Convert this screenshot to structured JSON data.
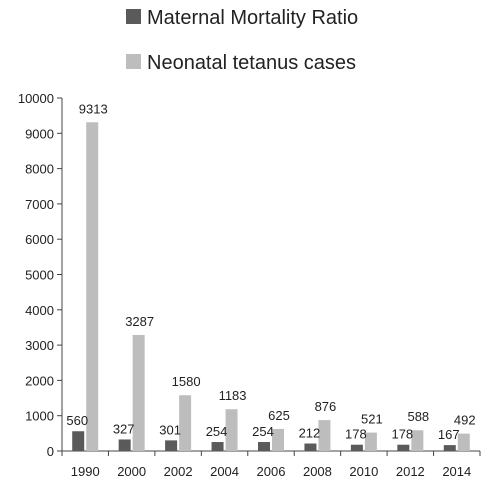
{
  "chart_data": {
    "type": "bar",
    "title": "",
    "xlabel": "",
    "ylabel": "",
    "categories": [
      "1990",
      "2000",
      "2002",
      "2004",
      "2006",
      "2008",
      "2010",
      "2012",
      "2014"
    ],
    "series": [
      {
        "name": "Maternal Mortality Ratio",
        "color": "#5a5a5a",
        "values": [
          560,
          327,
          301,
          254,
          254,
          212,
          178,
          178,
          167
        ]
      },
      {
        "name": "Neonatal tetanus cases",
        "color": "#bdbdbd",
        "values": [
          9313,
          3287,
          1580,
          1183,
          625,
          876,
          521,
          588,
          492
        ]
      }
    ],
    "ylim": [
      0,
      10000
    ],
    "yticks": [
      0,
      1000,
      2000,
      3000,
      4000,
      5000,
      6000,
      7000,
      8000,
      9000,
      10000
    ],
    "grid": false,
    "legend_position": "top"
  }
}
